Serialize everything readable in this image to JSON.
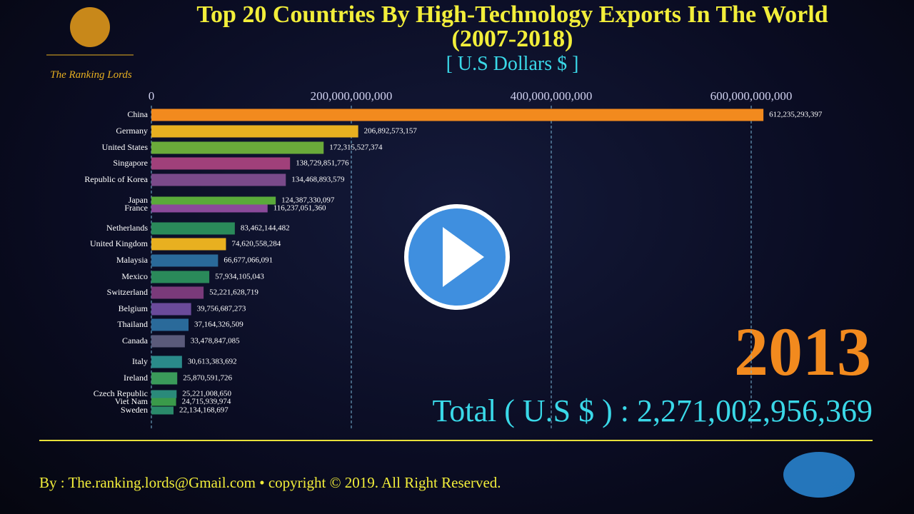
{
  "chart_data": {
    "type": "bar",
    "title": "Top 20 Countries By High-Technology Exports In The World (2007-2018)",
    "subtitle": "[ U.S Dollars $ ]",
    "categories": [
      "China",
      "Germany",
      "United States",
      "Singapore",
      "Republic of Korea",
      "Japan",
      "France",
      "Netherlands",
      "United Kingdom",
      "Malaysia",
      "Mexico",
      "Switzerland",
      "Belgium",
      "Thailand",
      "Canada",
      "Italy",
      "Ireland",
      "Czech Republic",
      "Viet Nam",
      "Sweden"
    ],
    "values": [
      612235293397,
      206892573157,
      172315527374,
      138729851776,
      134468893579,
      124387330097,
      116237051360,
      83462144482,
      74620558284,
      66677066091,
      57934105043,
      52221628719,
      39756687273,
      37164326509,
      33478847085,
      30613383692,
      25870591726,
      25221008650,
      24715939974,
      22134168697
    ],
    "value_labels": [
      "612,235,293,397",
      "206,892,573,157",
      "172,315,527,374",
      "138,729,851,776",
      "134,468,893,579",
      "124,387,330,097",
      "116,237,051,360",
      "83,462,144,482",
      "74,620,558,284",
      "66,677,066,091",
      "57,934,105,043",
      "52,221,628,719",
      "39,756,687,273",
      "37,164,326,509",
      "33,478,847,085",
      "30,613,383,692",
      "25,870,591,726",
      "25,221,008,650",
      "24,715,939,974",
      "22,134,168,697"
    ],
    "colors": [
      "#f28a1e",
      "#e8b020",
      "#6aaa3a",
      "#a0407a",
      "#7a4a8a",
      "#5aaa3a",
      "#8a4a9a",
      "#2a8a5a",
      "#e8b020",
      "#2a6a9a",
      "#2a8a5a",
      "#7a3a7a",
      "#6a4a9a",
      "#2a6a9a",
      "#5a5a7a",
      "#2a8a8a",
      "#3a9a5a",
      "#2a8a7a",
      "#3a9a4a",
      "#2a8a6a"
    ],
    "xlim": [
      0,
      620000000000
    ],
    "xticks": [
      0,
      {
        "value": 200000000000,
        "label": "200,000,000,000"
      },
      {
        "value": 400000000000,
        "label": "400,000,000,000"
      },
      {
        "value": 600000000000,
        "label": "600,000,000,000"
      }
    ],
    "grid": true,
    "year": "2013",
    "total": "Total ( U.S $ ) : 2,271,002,956,369"
  },
  "logo": "The Ranking Lords",
  "footer": "By : The.ranking.lords@Gmail.com • copyright © 2019. All Right Reserved."
}
